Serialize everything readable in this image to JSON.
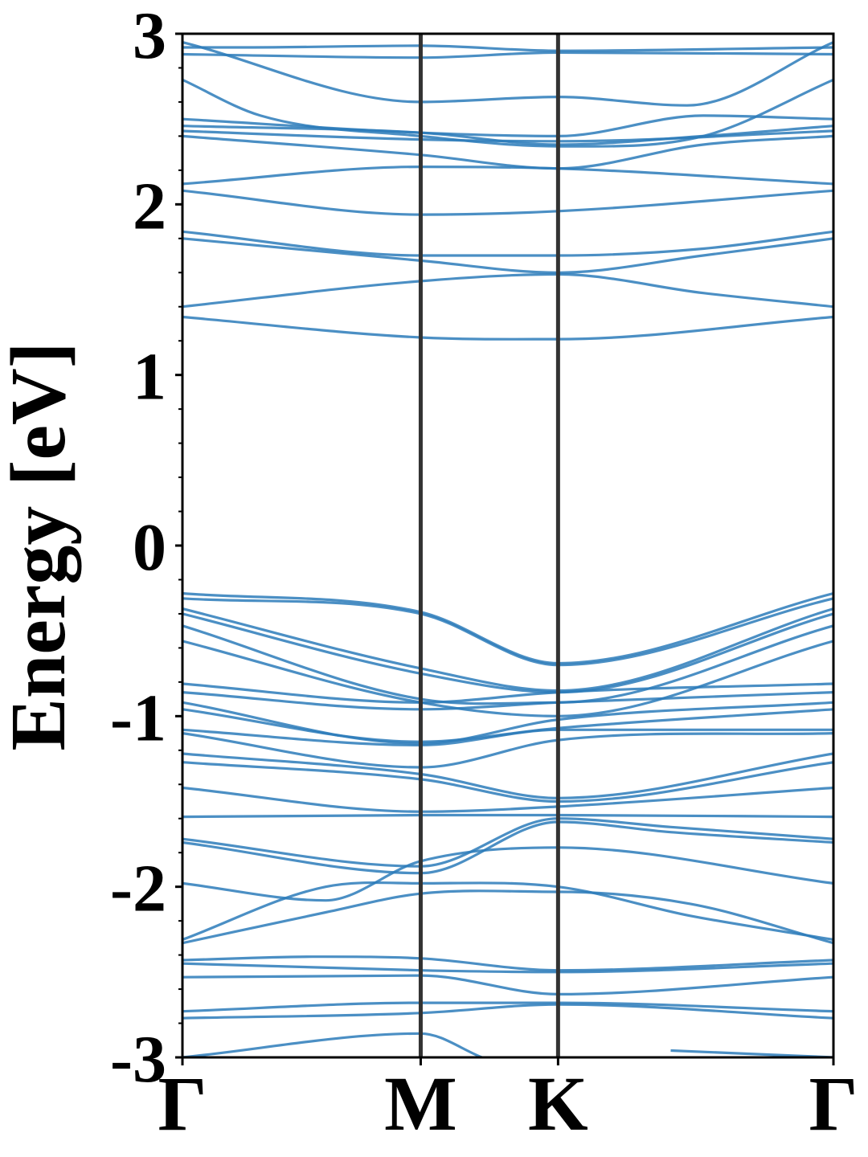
{
  "chart_data": {
    "type": "line",
    "title": "",
    "xlabel": "",
    "ylabel": "Energy [eV]",
    "ylim": [
      -3,
      3
    ],
    "y_ticks": [
      {
        "value": -3,
        "label": "-3"
      },
      {
        "value": -2,
        "label": "-2"
      },
      {
        "value": -1,
        "label": "-1"
      },
      {
        "value": 0,
        "label": "0"
      },
      {
        "value": 1,
        "label": "1"
      },
      {
        "value": 2,
        "label": "2"
      },
      {
        "value": 3,
        "label": "3"
      }
    ],
    "y_minor_step": 0.2,
    "x_points": [
      {
        "label": "Γ",
        "x": 0
      },
      {
        "label": "M",
        "x": 0.366
      },
      {
        "label": "K",
        "x": 0.577
      },
      {
        "label": "Γ",
        "x": 1
      }
    ],
    "xlim": [
      0,
      1
    ],
    "grid": false,
    "colors": {
      "band": "#2b7bba",
      "high_symmetry_line": "#333333",
      "axis": "#000000"
    },
    "series": [
      {
        "values": [
          [
            0,
            1.34
          ],
          [
            0.366,
            1.22
          ],
          [
            0.577,
            1.21
          ],
          [
            1,
            1.34
          ]
        ]
      },
      {
        "values": [
          [
            0,
            1.4
          ],
          [
            0.366,
            1.55
          ],
          [
            0.577,
            1.59
          ],
          [
            0.8,
            1.48
          ],
          [
            1,
            1.4
          ]
        ]
      },
      {
        "values": [
          [
            0,
            1.8
          ],
          [
            0.366,
            1.67
          ],
          [
            0.577,
            1.6
          ],
          [
            0.8,
            1.7
          ],
          [
            1,
            1.8
          ]
        ]
      },
      {
        "values": [
          [
            0,
            1.84
          ],
          [
            0.366,
            1.7
          ],
          [
            0.577,
            1.7
          ],
          [
            0.8,
            1.74
          ],
          [
            1,
            1.84
          ]
        ]
      },
      {
        "values": [
          [
            0,
            2.08
          ],
          [
            0.366,
            1.94
          ],
          [
            0.577,
            1.96
          ],
          [
            1,
            2.08
          ]
        ]
      },
      {
        "values": [
          [
            0,
            2.12
          ],
          [
            0.366,
            2.22
          ],
          [
            0.577,
            2.21
          ],
          [
            1,
            2.12
          ]
        ]
      },
      {
        "values": [
          [
            0,
            2.4
          ],
          [
            0.366,
            2.29
          ],
          [
            0.577,
            2.21
          ],
          [
            0.8,
            2.35
          ],
          [
            1,
            2.4
          ]
        ]
      },
      {
        "values": [
          [
            0,
            2.43
          ],
          [
            0.366,
            2.38
          ],
          [
            0.577,
            2.37
          ],
          [
            1,
            2.43
          ]
        ]
      },
      {
        "values": [
          [
            0,
            2.46
          ],
          [
            0.366,
            2.42
          ],
          [
            0.577,
            2.35
          ],
          [
            0.8,
            2.4
          ],
          [
            1,
            2.46
          ]
        ]
      },
      {
        "values": [
          [
            0,
            2.5
          ],
          [
            0.366,
            2.42
          ],
          [
            0.577,
            2.4
          ],
          [
            0.8,
            2.52
          ],
          [
            1,
            2.5
          ]
        ]
      },
      {
        "values": [
          [
            0,
            2.73
          ],
          [
            0.12,
            2.52
          ],
          [
            0.366,
            2.4
          ],
          [
            0.577,
            2.34
          ],
          [
            0.8,
            2.4
          ],
          [
            1,
            2.73
          ]
        ]
      },
      {
        "values": [
          [
            0,
            2.95
          ],
          [
            0.366,
            2.6
          ],
          [
            0.577,
            2.63
          ],
          [
            0.775,
            2.58
          ],
          [
            1,
            2.95
          ]
        ]
      },
      {
        "values": [
          [
            0,
            2.88
          ],
          [
            0.366,
            2.86
          ],
          [
            0.577,
            2.89
          ],
          [
            1,
            2.88
          ]
        ]
      },
      {
        "values": [
          [
            0,
            2.92
          ],
          [
            0.1,
            2.92
          ],
          [
            0.366,
            2.93
          ],
          [
            0.577,
            2.9
          ],
          [
            1,
            2.92
          ]
        ]
      },
      {
        "values": [
          [
            0,
            -0.28
          ],
          [
            0.366,
            -0.39
          ],
          [
            0.577,
            -0.69
          ],
          [
            1,
            -0.28
          ]
        ]
      },
      {
        "values": [
          [
            0,
            -0.31
          ],
          [
            0.366,
            -0.4
          ],
          [
            0.577,
            -0.7
          ],
          [
            1,
            -0.31
          ]
        ]
      },
      {
        "values": [
          [
            0,
            -0.37
          ],
          [
            0.366,
            -0.72
          ],
          [
            0.577,
            -0.85
          ],
          [
            1,
            -0.37
          ]
        ]
      },
      {
        "values": [
          [
            0,
            -0.4
          ],
          [
            0.366,
            -0.75
          ],
          [
            0.577,
            -0.86
          ],
          [
            1,
            -0.4
          ]
        ]
      },
      {
        "values": [
          [
            0,
            -0.47
          ],
          [
            0.366,
            -0.9
          ],
          [
            0.577,
            -0.92
          ],
          [
            1,
            -0.47
          ]
        ]
      },
      {
        "values": [
          [
            0,
            -0.56
          ],
          [
            0.366,
            -0.92
          ],
          [
            0.577,
            -1.0
          ],
          [
            1,
            -0.56
          ]
        ]
      },
      {
        "values": [
          [
            0,
            -0.81
          ],
          [
            0.366,
            -0.92
          ],
          [
            0.577,
            -0.86
          ],
          [
            1,
            -0.81
          ]
        ]
      },
      {
        "values": [
          [
            0,
            -0.86
          ],
          [
            0.366,
            -0.96
          ],
          [
            0.577,
            -0.92
          ],
          [
            1,
            -0.86
          ]
        ]
      },
      {
        "values": [
          [
            0,
            -0.92
          ],
          [
            0.366,
            -1.16
          ],
          [
            0.577,
            -1.02
          ],
          [
            1,
            -0.92
          ]
        ]
      },
      {
        "values": [
          [
            0,
            -0.96
          ],
          [
            0.366,
            -1.15
          ],
          [
            0.577,
            -1.07
          ],
          [
            1,
            -0.96
          ]
        ]
      },
      {
        "values": [
          [
            0,
            -1.08
          ],
          [
            0.366,
            -1.17
          ],
          [
            0.577,
            -1.08
          ],
          [
            1,
            -1.08
          ]
        ]
      },
      {
        "values": [
          [
            0,
            -1.1
          ],
          [
            0.366,
            -1.3
          ],
          [
            0.577,
            -1.14
          ],
          [
            1,
            -1.1
          ]
        ]
      },
      {
        "values": [
          [
            0,
            -1.22
          ],
          [
            0.366,
            -1.34
          ],
          [
            0.577,
            -1.48
          ],
          [
            1,
            -1.22
          ]
        ]
      },
      {
        "values": [
          [
            0,
            -1.27
          ],
          [
            0.366,
            -1.37
          ],
          [
            0.577,
            -1.5
          ],
          [
            1,
            -1.27
          ]
        ]
      },
      {
        "values": [
          [
            0,
            -1.42
          ],
          [
            0.366,
            -1.56
          ],
          [
            0.577,
            -1.53
          ],
          [
            1,
            -1.42
          ]
        ]
      },
      {
        "values": [
          [
            0,
            -1.59
          ],
          [
            0.366,
            -1.58
          ],
          [
            0.577,
            -1.58
          ],
          [
            1,
            -1.59
          ]
        ]
      },
      {
        "values": [
          [
            0,
            -1.72
          ],
          [
            0.366,
            -1.88
          ],
          [
            0.577,
            -1.6
          ],
          [
            0.75,
            -1.65
          ],
          [
            1,
            -1.72
          ]
        ]
      },
      {
        "values": [
          [
            0,
            -1.74
          ],
          [
            0.366,
            -1.92
          ],
          [
            0.577,
            -1.62
          ],
          [
            0.75,
            -1.68
          ],
          [
            1,
            -1.74
          ]
        ]
      },
      {
        "values": [
          [
            0,
            -1.98
          ],
          [
            0.22,
            -2.08
          ],
          [
            0.366,
            -1.85
          ],
          [
            0.577,
            -1.77
          ],
          [
            1,
            -1.98
          ]
        ]
      },
      {
        "values": [
          [
            0,
            -2.31
          ],
          [
            0.22,
            -2.0
          ],
          [
            0.366,
            -1.98
          ],
          [
            0.577,
            -2.0
          ],
          [
            0.78,
            -2.17
          ],
          [
            1,
            -2.31
          ]
        ]
      },
      {
        "values": [
          [
            0,
            -2.33
          ],
          [
            0.22,
            -2.15
          ],
          [
            0.366,
            -2.04
          ],
          [
            0.577,
            -2.03
          ],
          [
            0.78,
            -2.1
          ],
          [
            1,
            -2.33
          ]
        ]
      },
      {
        "values": [
          [
            0,
            -2.43
          ],
          [
            0.2,
            -2.41
          ],
          [
            0.366,
            -2.42
          ],
          [
            0.577,
            -2.49
          ],
          [
            1,
            -2.43
          ]
        ]
      },
      {
        "values": [
          [
            0,
            -2.45
          ],
          [
            0.366,
            -2.49
          ],
          [
            0.577,
            -2.5
          ],
          [
            1,
            -2.45
          ]
        ]
      },
      {
        "values": [
          [
            0,
            -2.53
          ],
          [
            0.366,
            -2.52
          ],
          [
            0.577,
            -2.63
          ],
          [
            1,
            -2.53
          ]
        ]
      },
      {
        "values": [
          [
            0,
            -2.73
          ],
          [
            0.366,
            -2.68
          ],
          [
            0.577,
            -2.68
          ],
          [
            1,
            -2.73
          ]
        ]
      },
      {
        "values": [
          [
            0,
            -2.77
          ],
          [
            0.366,
            -2.74
          ],
          [
            0.577,
            -2.69
          ],
          [
            1,
            -2.77
          ]
        ]
      },
      {
        "values": [
          [
            0,
            -3.0
          ],
          [
            0.366,
            -2.86
          ],
          [
            0.46,
            -3.0
          ]
        ]
      },
      {
        "values": [
          [
            0.75,
            -2.96
          ],
          [
            1,
            -3.0
          ]
        ]
      }
    ]
  }
}
